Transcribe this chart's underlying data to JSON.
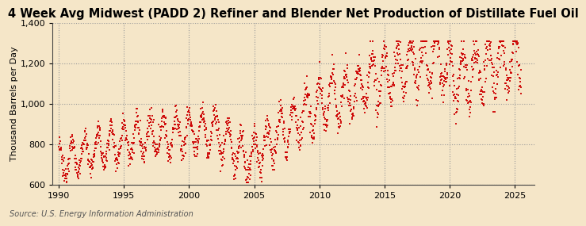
{
  "title": "4 Week Avg Midwest (PADD 2) Refiner and Blender Net Production of Distillate Fuel Oil",
  "ylabel": "Thousand Barrels per Day",
  "source": "Source: U.S. Energy Information Administration",
  "background_color": "#f5e6c8",
  "plot_bg_color": "#f5e6c8",
  "marker_color": "#cc0000",
  "ylim": [
    600,
    1400
  ],
  "yticks": [
    600,
    800,
    1000,
    1200,
    1400
  ],
  "ytick_labels": [
    "600",
    "800",
    "1,000",
    "1,200",
    "1,400"
  ],
  "xlim_start": 1989.5,
  "xlim_end": 2026.5,
  "xticks": [
    1990,
    1995,
    2000,
    2005,
    2010,
    2015,
    2020,
    2025
  ],
  "title_fontsize": 10.5,
  "label_fontsize": 8,
  "tick_fontsize": 8,
  "source_fontsize": 7
}
